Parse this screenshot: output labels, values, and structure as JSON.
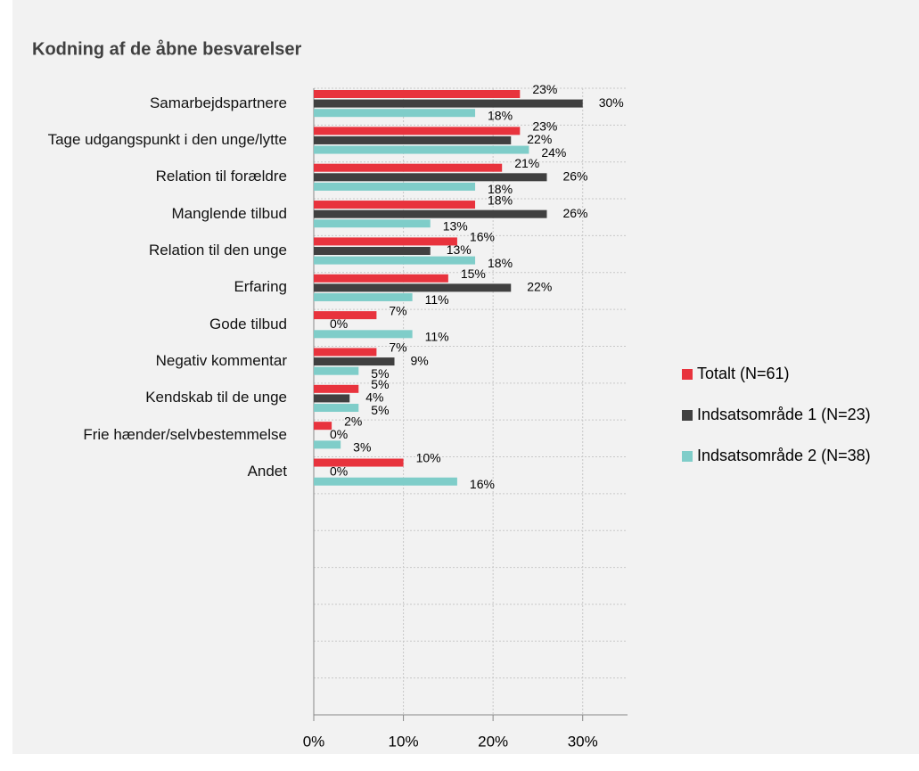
{
  "chart_data": {
    "type": "bar",
    "orientation": "horizontal",
    "title": "Kodning af de åbne besvarelser",
    "categories": [
      "Samarbejdspartnere",
      "Tage udgangspunkt i den unge/lytte",
      "Relation til forældre",
      "Manglende tilbud",
      "Relation til den unge",
      "Erfaring",
      "Gode tilbud",
      "Negativ kommentar",
      "Kendskab til de unge",
      "Frie hænder/selvbestemmelse",
      "Andet",
      null,
      null,
      null,
      null,
      null,
      null
    ],
    "series": [
      {
        "name": "Totalt (N=61)",
        "color": "#e8333d",
        "values": [
          23,
          23,
          21,
          18,
          16,
          15,
          7,
          7,
          5,
          2,
          10,
          null,
          null,
          null,
          null,
          null,
          null
        ],
        "value_labels": [
          "23%",
          "23%",
          "21%",
          "18%",
          "16%",
          "15%",
          "7%",
          "7%",
          "5%",
          "2%",
          "10%",
          null,
          null,
          null,
          null,
          null,
          null
        ]
      },
      {
        "name": "Indsatsområde 1 (N=23)",
        "color": "#404040",
        "values": [
          30,
          22,
          26,
          26,
          13,
          22,
          0,
          9,
          4,
          0,
          0,
          null,
          null,
          null,
          null,
          null,
          null
        ],
        "value_labels": [
          "30%",
          "22%",
          "26%",
          "26%",
          "13%",
          "22%",
          "0%",
          "9%",
          "4%",
          "0%",
          "0%",
          null,
          null,
          null,
          null,
          null,
          null
        ]
      },
      {
        "name": "Indsatsområde 2 (N=38)",
        "color": "#7fcdc9",
        "values": [
          18,
          24,
          18,
          13,
          18,
          11,
          11,
          5,
          5,
          3,
          16,
          null,
          null,
          null,
          null,
          null,
          null
        ],
        "value_labels": [
          "18%",
          "24%",
          "18%",
          "13%",
          "18%",
          "11%",
          "11%",
          "5%",
          "5%",
          "3%",
          "16%",
          null,
          null,
          null,
          null,
          null,
          null
        ]
      }
    ],
    "xlim": [
      0,
      35
    ],
    "xticks": [
      {
        "value": 0,
        "label": "0%"
      },
      {
        "value": 10,
        "label": "10%"
      },
      {
        "value": 20,
        "label": "20%"
      },
      {
        "value": 30,
        "label": "30%"
      }
    ],
    "grid": true,
    "legend": "right"
  }
}
